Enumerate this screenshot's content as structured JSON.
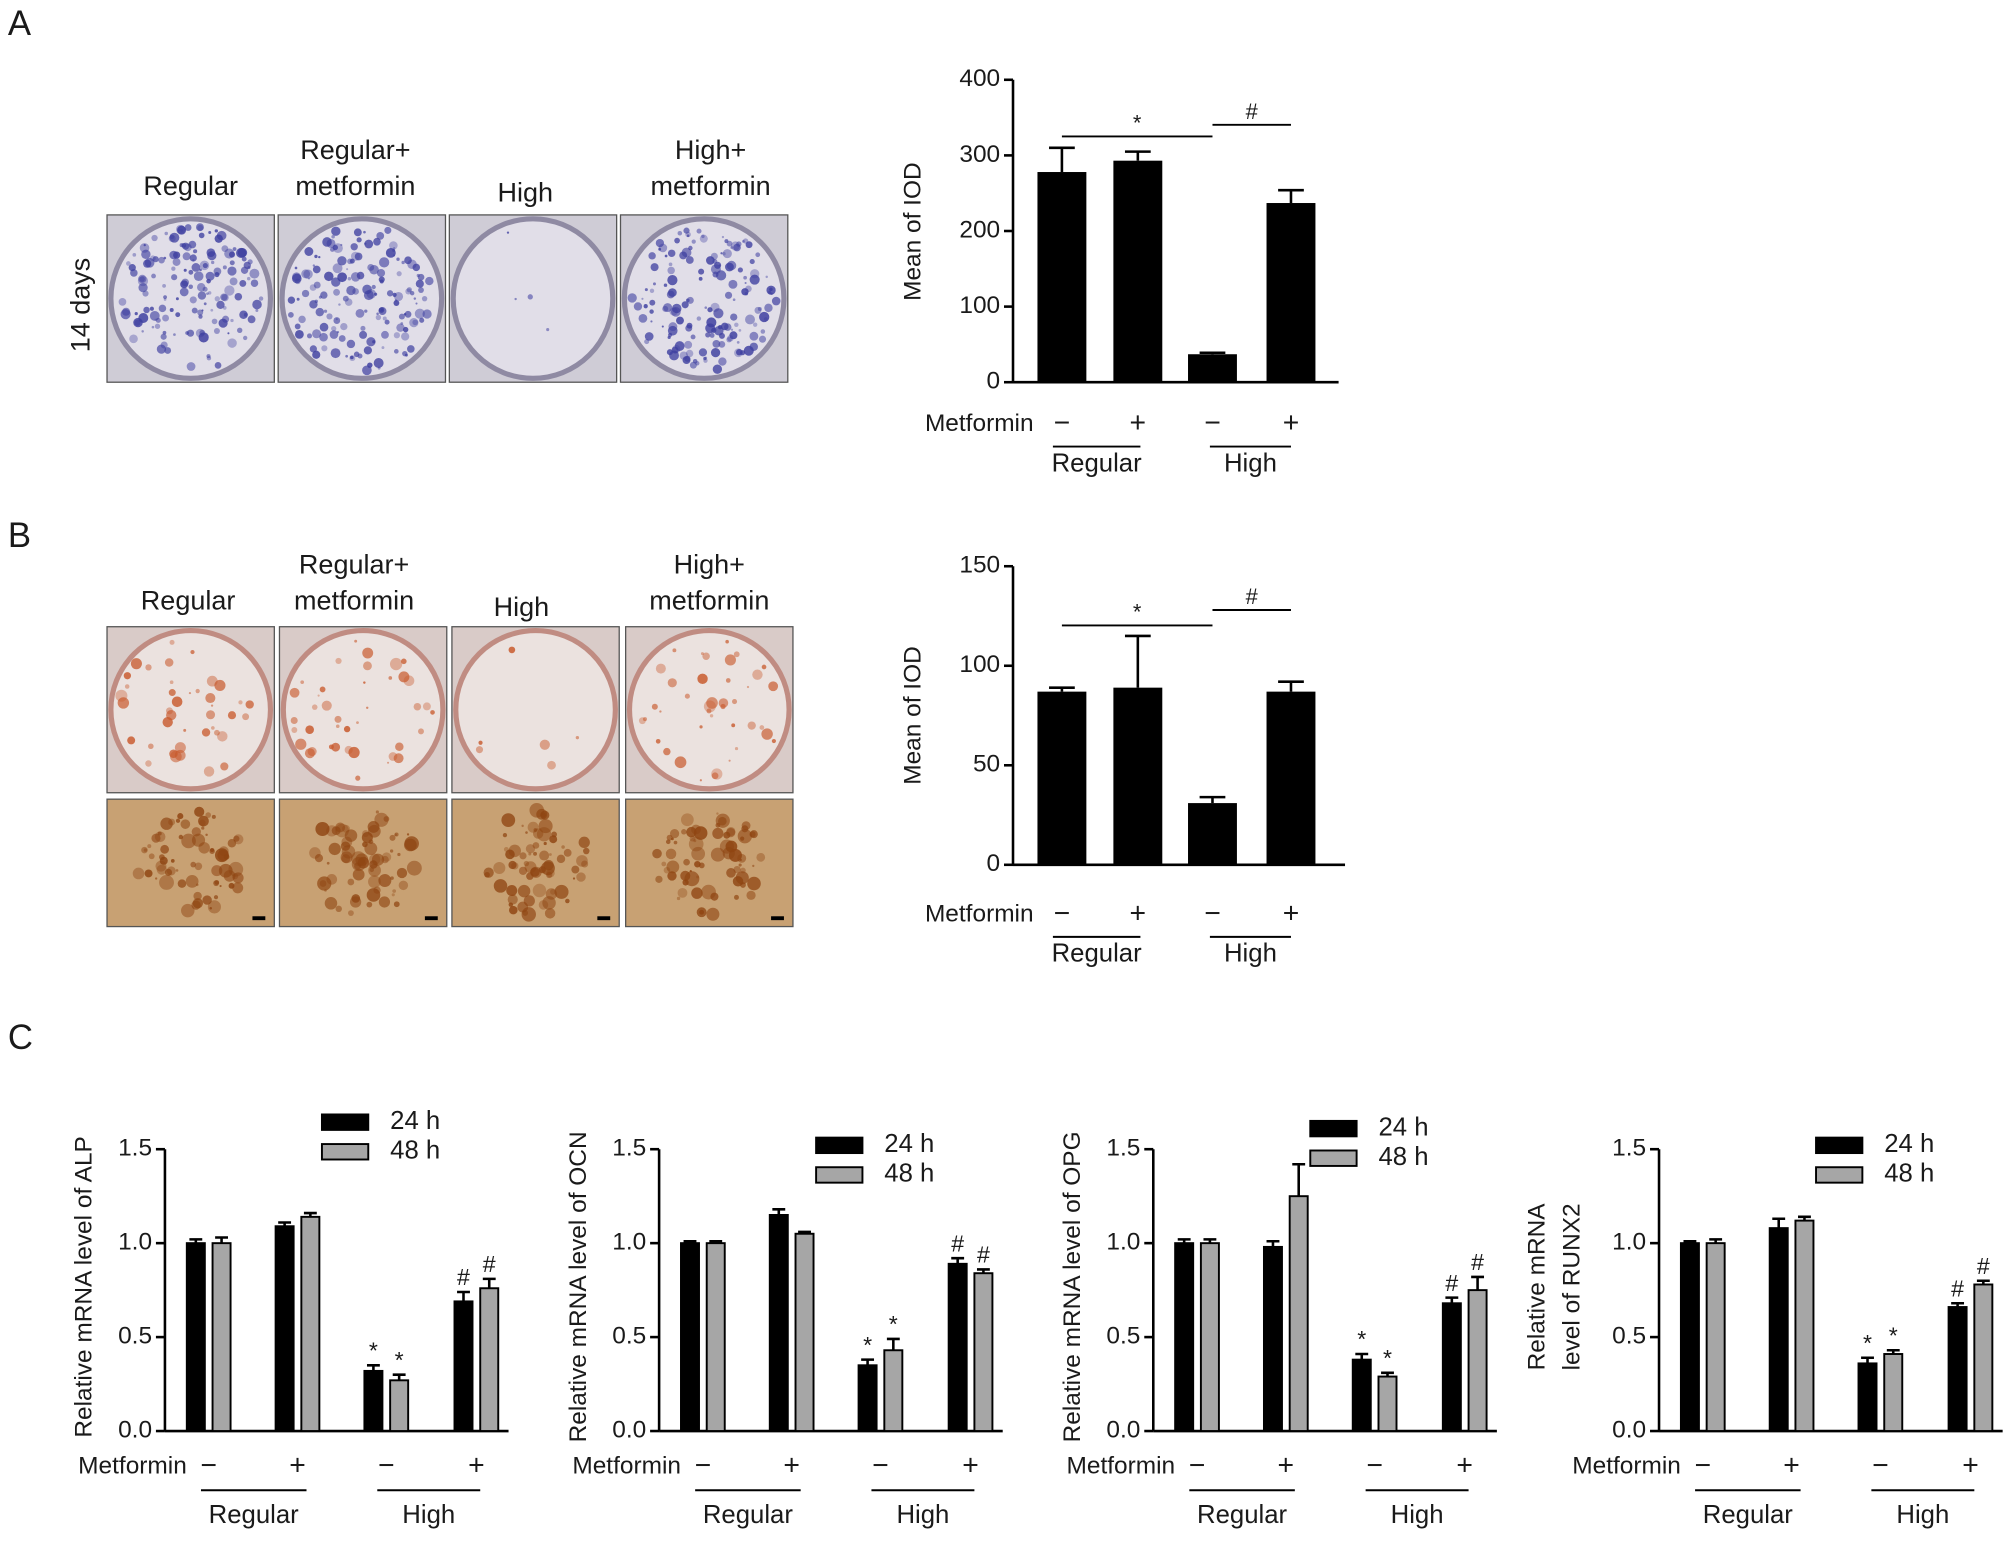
{
  "panels": [
    {
      "letter": "A",
      "image_labels": [
        [
          "Regular"
        ],
        [
          "Regular+",
          "metformin"
        ],
        [
          "High"
        ],
        [
          "High+",
          "metformin"
        ]
      ],
      "row_label": "14 days"
    },
    {
      "letter": "B",
      "image_labels": [
        [
          "Regular"
        ],
        [
          "Regular+",
          "metformin"
        ],
        [
          "High"
        ],
        [
          "High+",
          "metformin"
        ]
      ]
    },
    {
      "letter": "C"
    }
  ],
  "chart_data": [
    {
      "type": "bar",
      "ylabel": "Mean of IOD",
      "x_label": "Metformin",
      "categories": [
        "−",
        "+",
        "−",
        "+"
      ],
      "groups": [
        "Regular",
        "High"
      ],
      "values": [
        278,
        293,
        37,
        237
      ],
      "errors": [
        32,
        12,
        2,
        17
      ],
      "color": "#000000",
      "ylim": [
        0,
        400
      ],
      "yticks": [
        0,
        100,
        200,
        300,
        400
      ],
      "significance": [
        "*",
        "#"
      ]
    },
    {
      "type": "bar",
      "ylabel": "Mean of IOD",
      "x_label": "Metformin",
      "categories": [
        "−",
        "+",
        "−",
        "+"
      ],
      "groups": [
        "Regular",
        "High"
      ],
      "values": [
        87,
        89,
        31,
        87
      ],
      "errors": [
        2,
        26,
        3,
        5
      ],
      "color": "#000000",
      "ylim": [
        0,
        150
      ],
      "yticks": [
        0,
        50,
        100,
        150
      ],
      "significance": [
        "*",
        "#"
      ]
    },
    {
      "type": "bar",
      "ylabel": "Relative mRNA level of ALP",
      "x_label": "Metformin",
      "categories": [
        "−",
        "+",
        "−",
        "+"
      ],
      "groups": [
        "Regular",
        "High"
      ],
      "ylim": [
        0,
        1.5
      ],
      "yticks": [
        {
          "value": 0,
          "label": "0.0"
        },
        0.5,
        {
          "value": 1,
          "label": "1.0"
        },
        1.5
      ],
      "series": [
        {
          "name": "24 h",
          "color": "#000000",
          "values": [
            1.0,
            1.09,
            0.32,
            0.69
          ],
          "errors": [
            0.02,
            0.02,
            0.03,
            0.05
          ],
          "markers": [
            null,
            null,
            "*",
            "#"
          ]
        },
        {
          "name": "48 h",
          "color": "#a6a6a6",
          "values": [
            1.0,
            1.14,
            0.27,
            0.76
          ],
          "errors": [
            0.03,
            0.02,
            0.03,
            0.05
          ],
          "markers": [
            null,
            null,
            "*",
            "#"
          ]
        }
      ]
    },
    {
      "type": "bar",
      "ylabel": "Relative mRNA level of OCN",
      "x_label": "Metformin",
      "categories": [
        "−",
        "+",
        "−",
        "+"
      ],
      "groups": [
        "Regular",
        "High"
      ],
      "ylim": [
        0,
        1.5
      ],
      "yticks": [
        {
          "value": 0,
          "label": "0.0"
        },
        0.5,
        {
          "value": 1,
          "label": "1.0"
        },
        1.5
      ],
      "series": [
        {
          "name": "24 h",
          "color": "#000000",
          "values": [
            1.0,
            1.15,
            0.35,
            0.89
          ],
          "errors": [
            0.01,
            0.03,
            0.03,
            0.03
          ],
          "markers": [
            null,
            null,
            "*",
            "#"
          ]
        },
        {
          "name": "48 h",
          "color": "#a6a6a6",
          "values": [
            1.0,
            1.05,
            0.43,
            0.84
          ],
          "errors": [
            0.01,
            0.01,
            0.06,
            0.02
          ],
          "markers": [
            null,
            null,
            "*",
            "#"
          ]
        }
      ]
    },
    {
      "type": "bar",
      "ylabel": "Relative mRNA level of OPG",
      "x_label": "Metformin",
      "categories": [
        "−",
        "+",
        "−",
        "+"
      ],
      "groups": [
        "Regular",
        "High"
      ],
      "ylim": [
        0,
        1.5
      ],
      "yticks": [
        {
          "value": 0,
          "label": "0.0"
        },
        0.5,
        {
          "value": 1,
          "label": "1.0"
        },
        1.5
      ],
      "series": [
        {
          "name": "24 h",
          "color": "#000000",
          "values": [
            1.0,
            0.98,
            0.38,
            0.68
          ],
          "errors": [
            0.02,
            0.03,
            0.03,
            0.03
          ],
          "markers": [
            null,
            null,
            "*",
            "#"
          ]
        },
        {
          "name": "48 h",
          "color": "#a6a6a6",
          "values": [
            1.0,
            1.25,
            0.29,
            0.75
          ],
          "errors": [
            0.02,
            0.17,
            0.02,
            0.07
          ],
          "markers": [
            null,
            null,
            "*",
            "#"
          ]
        }
      ]
    },
    {
      "type": "bar",
      "ylabel": [
        "Relative mRNA",
        "level of RUNX2"
      ],
      "x_label": "Metformin",
      "categories": [
        "−",
        "+",
        "−",
        "+"
      ],
      "groups": [
        "Regular",
        "High"
      ],
      "ylim": [
        0,
        1.5
      ],
      "yticks": [
        {
          "value": 0,
          "label": "0.0"
        },
        0.5,
        {
          "value": 1,
          "label": "1.0"
        },
        1.5
      ],
      "series": [
        {
          "name": "24 h",
          "color": "#000000",
          "values": [
            1.0,
            1.08,
            0.36,
            0.66
          ],
          "errors": [
            0.01,
            0.05,
            0.03,
            0.02
          ],
          "markers": [
            null,
            null,
            "*",
            "#"
          ]
        },
        {
          "name": "48 h",
          "color": "#a6a6a6",
          "values": [
            1.0,
            1.12,
            0.41,
            0.78
          ],
          "errors": [
            0.02,
            0.02,
            0.02,
            0.02
          ],
          "markers": [
            null,
            null,
            "*",
            "#"
          ]
        }
      ]
    }
  ]
}
